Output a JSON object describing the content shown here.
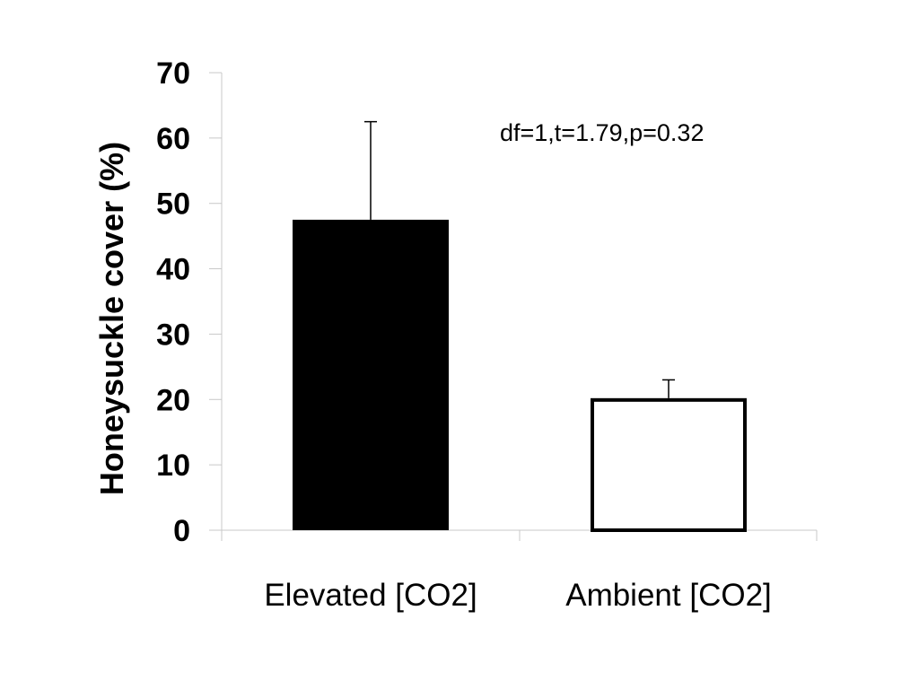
{
  "chart_data": {
    "type": "bar",
    "categories": [
      "Elevated [CO2]",
      "Ambient [CO2]"
    ],
    "values": [
      47.5,
      20.2
    ],
    "error_upper": [
      62.5,
      23.0
    ],
    "bar_fills": [
      "#000000",
      "#ffffff"
    ],
    "bar_strokes": [
      "#000000",
      "#000000"
    ],
    "ylabel": "Honeysuckle cover (%)",
    "xlabel": "",
    "ylim": [
      0,
      70
    ],
    "yticks": [
      "0",
      "10",
      "20",
      "30",
      "40",
      "50",
      "60",
      "70"
    ],
    "annotation": "df=1,t=1.79,p=0.32",
    "grid": false,
    "legend": "none",
    "axis_color": "#c8c8c8"
  }
}
